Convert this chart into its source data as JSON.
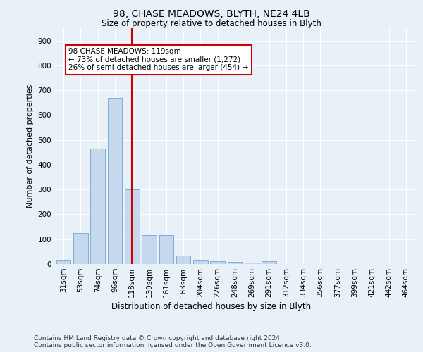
{
  "title1": "98, CHASE MEADOWS, BLYTH, NE24 4LB",
  "title2": "Size of property relative to detached houses in Blyth",
  "xlabel": "Distribution of detached houses by size in Blyth",
  "ylabel": "Number of detached properties",
  "categories": [
    "31sqm",
    "53sqm",
    "74sqm",
    "96sqm",
    "118sqm",
    "139sqm",
    "161sqm",
    "183sqm",
    "204sqm",
    "226sqm",
    "248sqm",
    "269sqm",
    "291sqm",
    "312sqm",
    "334sqm",
    "356sqm",
    "377sqm",
    "399sqm",
    "421sqm",
    "442sqm",
    "464sqm"
  ],
  "values": [
    15,
    125,
    465,
    670,
    300,
    115,
    115,
    35,
    15,
    10,
    8,
    5,
    10,
    0,
    0,
    0,
    0,
    0,
    0,
    0,
    0
  ],
  "bar_color": "#c5d8ed",
  "bar_edge_color": "#7fafd4",
  "vline_index": 4,
  "vline_color": "#cc0000",
  "annotation_text": "98 CHASE MEADOWS: 119sqm\n← 73% of detached houses are smaller (1,272)\n26% of semi-detached houses are larger (454) →",
  "annotation_box_color": "#ffffff",
  "annotation_box_edge_color": "#cc0000",
  "ylim": [
    0,
    950
  ],
  "yticks": [
    0,
    100,
    200,
    300,
    400,
    500,
    600,
    700,
    800,
    900
  ],
  "footnote": "Contains HM Land Registry data © Crown copyright and database right 2024.\nContains public sector information licensed under the Open Government Licence v3.0.",
  "bg_color": "#e8f0f8",
  "plot_bg_color": "#e8f0f8",
  "grid_color": "#ffffff",
  "title1_fontsize": 10,
  "title2_fontsize": 8.5,
  "xlabel_fontsize": 8.5,
  "ylabel_fontsize": 8,
  "tick_fontsize": 7.5,
  "annotation_fontsize": 7.5,
  "footnote_fontsize": 6.5
}
